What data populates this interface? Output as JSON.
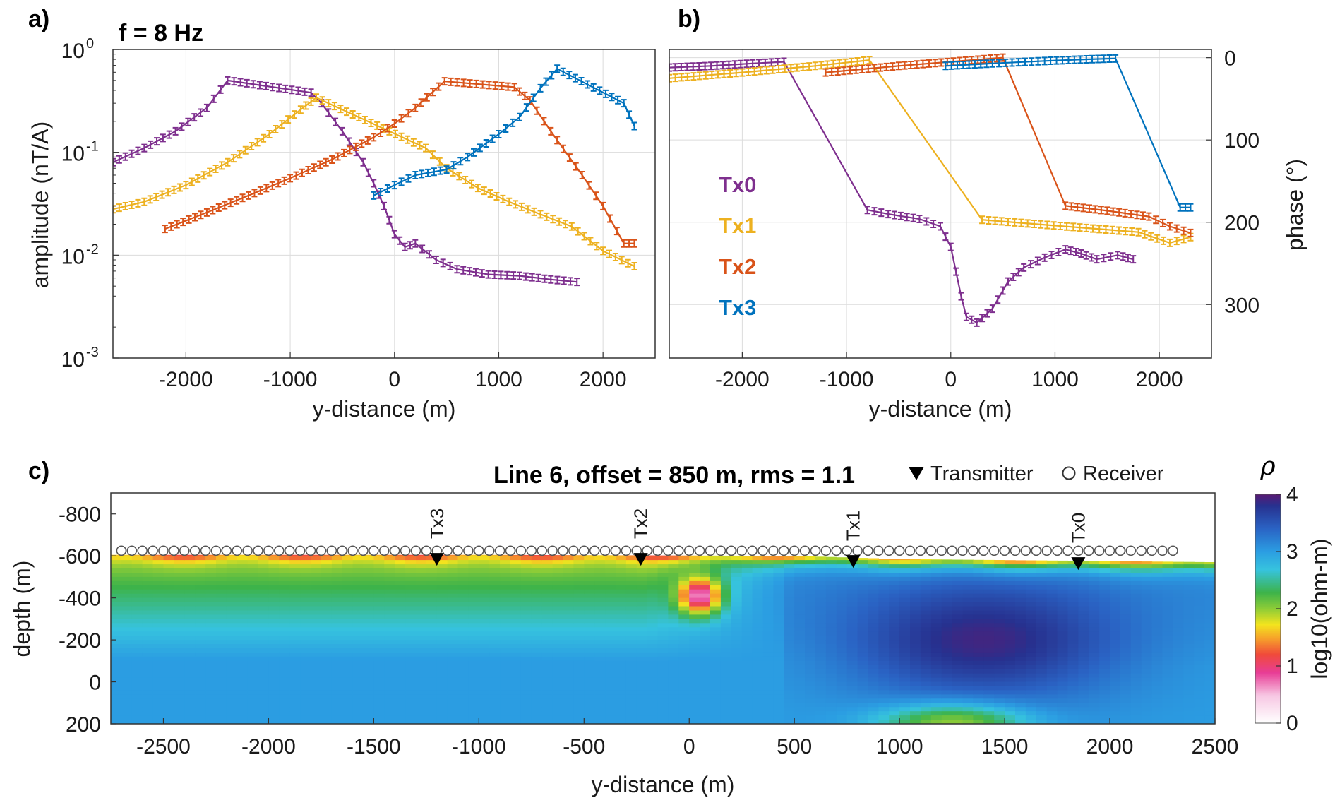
{
  "chart_data": [
    {
      "panel": "a)",
      "type": "line",
      "annotation": "f = 8 Hz",
      "xlabel": "y-distance (m)",
      "ylabel": "amplitude (nT/A)",
      "xlim": [
        -2700,
        2500
      ],
      "ylim": [
        0.001,
        1
      ],
      "yscale": "log",
      "grid": true,
      "x_ticks": [
        -2000,
        -1000,
        0,
        1000,
        2000
      ],
      "y_ticks": [
        {
          "value": 1,
          "base": "10",
          "exp": "0"
        },
        {
          "value": 0.1,
          "base": "10",
          "exp": "-1"
        },
        {
          "value": 0.01,
          "base": "10",
          "exp": "-2"
        },
        {
          "value": 0.001,
          "base": "10",
          "exp": "-3"
        }
      ],
      "series": [
        {
          "name": "Tx0",
          "color": "#7E2F8E",
          "x": [
            -2700,
            -2400,
            -2100,
            -1800,
            -1600,
            -800,
            -700,
            -500,
            -300,
            -200,
            -100,
            0,
            100,
            200,
            400,
            600,
            900,
            1200,
            1500,
            1750
          ],
          "y": [
            0.08,
            0.11,
            0.16,
            0.27,
            0.5,
            0.38,
            0.3,
            0.16,
            0.08,
            0.05,
            0.03,
            0.016,
            0.012,
            0.013,
            0.009,
            0.0073,
            0.0065,
            0.0063,
            0.0058,
            0.0055
          ]
        },
        {
          "name": "Tx1",
          "color": "#EDB120",
          "x": [
            -2700,
            -2400,
            -2000,
            -1600,
            -1200,
            -900,
            -750,
            300,
            500,
            800,
            1100,
            1400,
            1700,
            2000,
            2300
          ],
          "y": [
            0.028,
            0.033,
            0.048,
            0.08,
            0.15,
            0.26,
            0.34,
            0.11,
            0.07,
            0.045,
            0.033,
            0.025,
            0.019,
            0.011,
            0.0078
          ]
        },
        {
          "name": "Tx2",
          "color": "#D95319",
          "x": [
            -2200,
            -1800,
            -1400,
            -1000,
            -600,
            -200,
            0,
            200,
            480,
            1150,
            1300,
            1500,
            1800,
            2000,
            2200,
            2300
          ],
          "y": [
            0.018,
            0.026,
            0.038,
            0.056,
            0.085,
            0.14,
            0.19,
            0.27,
            0.49,
            0.43,
            0.32,
            0.16,
            0.06,
            0.03,
            0.013,
            0.013
          ]
        },
        {
          "name": "Tx3",
          "color": "#0072BD",
          "x": [
            -200,
            0,
            200,
            500,
            700,
            1000,
            1200,
            1400,
            1560,
            2200,
            2300
          ],
          "y": [
            0.038,
            0.048,
            0.06,
            0.068,
            0.09,
            0.15,
            0.22,
            0.42,
            0.65,
            0.3,
            0.18
          ]
        }
      ]
    },
    {
      "panel": "b)",
      "type": "line",
      "xlabel": "y-distance (m)",
      "ylabel": "phase (°)",
      "xlim": [
        -2700,
        2500
      ],
      "ylim": [
        -10,
        365
      ],
      "yreversed": true,
      "yaxis_position": "right",
      "grid": true,
      "legend_position": "left",
      "x_ticks": [
        -2000,
        -1000,
        0,
        1000,
        2000
      ],
      "y_ticks": [
        0,
        100,
        200,
        300
      ],
      "series": [
        {
          "name": "Tx0",
          "color": "#7E2F8E",
          "x": [
            -2700,
            -2300,
            -1900,
            -1600,
            -800,
            -600,
            -300,
            -100,
            0,
            100,
            150,
            250,
            400,
            550,
            700,
            900,
            1100,
            1250,
            1400,
            1600,
            1750
          ],
          "y": [
            12,
            10,
            7,
            5,
            185,
            190,
            196,
            205,
            230,
            290,
            315,
            322,
            305,
            272,
            255,
            243,
            233,
            238,
            245,
            240,
            245
          ]
        },
        {
          "name": "Tx1",
          "color": "#EDB120",
          "x": [
            -2700,
            -2000,
            -1300,
            -780,
            300,
            800,
            1300,
            1800,
            2100,
            2300
          ],
          "y": [
            25,
            18,
            10,
            3,
            197,
            202,
            207,
            212,
            225,
            218
          ]
        },
        {
          "name": "Tx2",
          "color": "#D95319",
          "x": [
            -1200,
            -500,
            200,
            500,
            1100,
            1500,
            1900,
            2100,
            2300
          ],
          "y": [
            18,
            10,
            3,
            0,
            180,
            186,
            193,
            205,
            213
          ]
        },
        {
          "name": "Tx3",
          "color": "#0072BD",
          "x": [
            -50,
            400,
            900,
            1300,
            1580,
            2200,
            2300
          ],
          "y": [
            10,
            7,
            4,
            2,
            1,
            182,
            182
          ]
        }
      ]
    },
    {
      "panel": "c)",
      "type": "heatmap",
      "title": "Line 6, offset = 850 m, rms = 1.1",
      "xlabel": "y-distance (m)",
      "ylabel": "depth (m)",
      "xlim": [
        -2750,
        2500
      ],
      "ylim": [
        -900,
        200
      ],
      "yreversed": true,
      "x_ticks": [
        -2500,
        -2000,
        -1500,
        -1000,
        -500,
        0,
        500,
        1000,
        1500,
        2000,
        2500
      ],
      "y_ticks": [
        -800,
        -600,
        -400,
        -200,
        0,
        200
      ],
      "colorbar": {
        "title": "ρ",
        "label": "log10(ohm-m)",
        "ticks": [
          0,
          1,
          2,
          3,
          4
        ],
        "range": [
          0,
          4
        ]
      },
      "legend": {
        "transmitter": "Transmitter",
        "receiver": "Receiver"
      },
      "transmitters": [
        {
          "name": "Tx3",
          "x": -1200,
          "depth": -580
        },
        {
          "name": "Tx2",
          "x": -230,
          "depth": -580
        },
        {
          "name": "Tx1",
          "x": 780,
          "depth": -570
        },
        {
          "name": "Tx0",
          "x": 1850,
          "depth": -560
        }
      ],
      "receivers": {
        "x_start": -2700,
        "x_end": 2300,
        "spacing": 50,
        "depth": -625
      },
      "surface_depth": [
        [
          -2750,
          -605
        ],
        [
          -1000,
          -605
        ],
        [
          500,
          -600
        ],
        [
          1000,
          -585
        ],
        [
          2500,
          -570
        ]
      ],
      "resistivity_model": [
        {
          "region": "shallow conductive layer",
          "log10_rho": 1.2
        },
        {
          "region": "conductor near y=0 m",
          "center_x": 50,
          "center_depth": -410,
          "log10_rho": 0.6
        },
        {
          "region": "west near-surface",
          "log10_rho": 2.0
        },
        {
          "region": "deep background",
          "log10_rho": 3.0
        },
        {
          "region": "east resistive body",
          "center_x": 1400,
          "center_depth": -200,
          "log10_rho": 3.9
        },
        {
          "region": "deep conductor",
          "center_x": 1250,
          "center_depth": 200,
          "log10_rho": 2.0
        }
      ]
    }
  ]
}
